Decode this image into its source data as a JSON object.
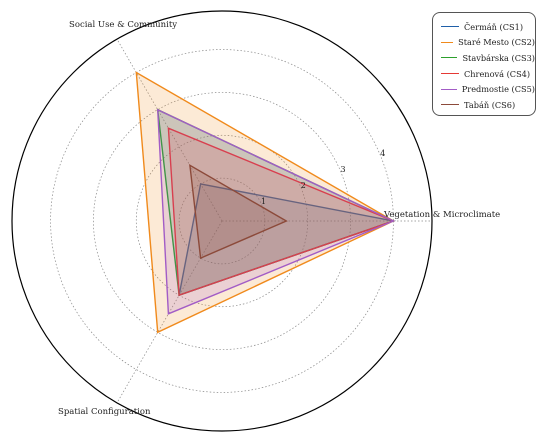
{
  "chart_data": {
    "type": "radar",
    "axes": [
      "Vegetation & Microclimate",
      "Social Use & Community",
      "Spatial Configuration"
    ],
    "radial_ticks": [
      "1",
      "2",
      "3",
      "4"
    ],
    "rmax": 4,
    "grid": true,
    "legend_position": "top-right",
    "series": [
      {
        "name": "Čermáň (CS1)",
        "values": [
          4.0,
          1.0,
          2.0
        ],
        "color": "#1f5fa8"
      },
      {
        "name": "Staré Mesto (CS2)",
        "values": [
          4.0,
          4.0,
          3.0
        ],
        "color": "#f08a1c"
      },
      {
        "name": "Stavbárska (CS3)",
        "values": [
          4.0,
          3.0,
          2.0
        ],
        "color": "#2ca02c"
      },
      {
        "name": "Chrenová (CS4)",
        "values": [
          4.0,
          2.5,
          2.0
        ],
        "color": "#e53935"
      },
      {
        "name": "Predmostie (CS5)",
        "values": [
          4.0,
          3.0,
          2.5
        ],
        "color": "#a25cc6"
      },
      {
        "name": "Tabáň (CS6)",
        "values": [
          1.5,
          1.5,
          1.0
        ],
        "color": "#8c4a3a"
      }
    ]
  }
}
